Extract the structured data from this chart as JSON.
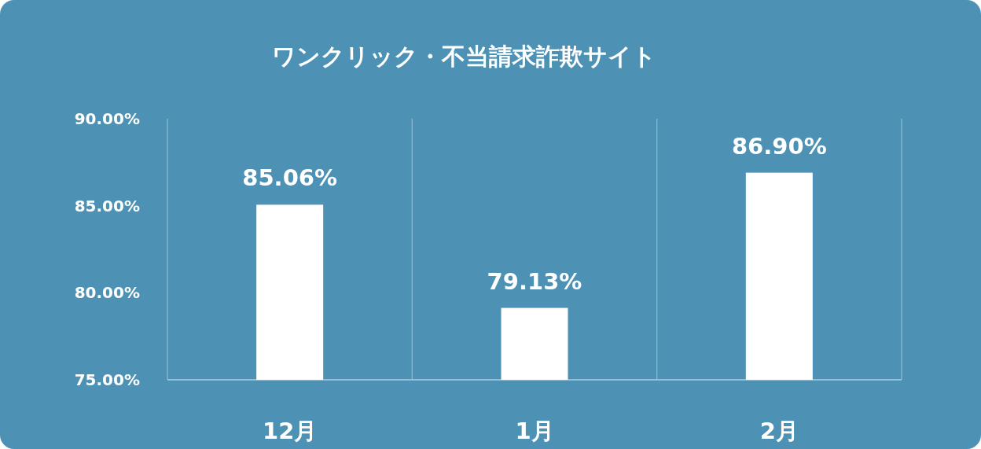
{
  "chart_data": {
    "type": "bar",
    "title": "ワンクリック・不当請求詐欺サイト",
    "categories": [
      "12月",
      "1月",
      "2月"
    ],
    "values": [
      85.06,
      79.13,
      86.9
    ],
    "value_labels": [
      "85.06%",
      "79.13%",
      "86.90%"
    ],
    "color": "#ffffff",
    "ylim": [
      75,
      90
    ],
    "yticks": [
      {
        "value": 75,
        "label": "75.00%"
      },
      {
        "value": 80,
        "label": "80.00%"
      },
      {
        "value": 85,
        "label": "85.00%"
      },
      {
        "value": 90,
        "label": "90.00%"
      }
    ],
    "grid": "x"
  }
}
